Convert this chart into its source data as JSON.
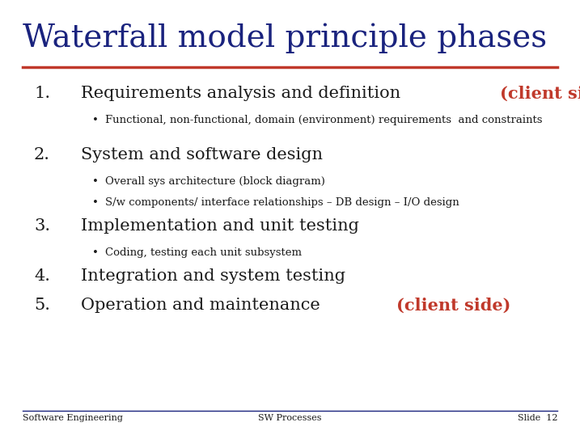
{
  "title": "Waterfall model principle phases",
  "title_color": "#1a237e",
  "title_fontsize": 28,
  "title_font": "serif",
  "separator_color": "#c0392b",
  "background_color": "#ffffff",
  "items": [
    {
      "number": "1.",
      "text_normal": "Requirements analysis and definition ",
      "text_red": "(client side)",
      "text_color": "#1a1a1a",
      "text_red_color": "#c0392b",
      "main_fontsize": 15,
      "sub_items": [
        "Functional, non-functional, domain (environment) requirements  and constraints"
      ],
      "sub_fontsize": 9.5
    },
    {
      "number": "2.",
      "text_normal": "System and software design",
      "text_red": "",
      "text_color": "#1a1a1a",
      "text_red_color": "#c0392b",
      "main_fontsize": 15,
      "sub_items": [
        "Overall sys architecture (block diagram)",
        "S/w components/ interface relationships – DB design – I/O design"
      ],
      "sub_fontsize": 9.5
    },
    {
      "number": "3.",
      "text_normal": "Implementation and unit testing",
      "text_red": "",
      "text_color": "#1a1a1a",
      "text_red_color": "#c0392b",
      "main_fontsize": 15,
      "sub_items": [
        "Coding, testing each unit subsystem"
      ],
      "sub_fontsize": 9.5
    },
    {
      "number": "4.",
      "text_normal": "Integration and system testing",
      "text_red": "",
      "text_color": "#1a1a1a",
      "text_red_color": "#c0392b",
      "main_fontsize": 15,
      "sub_items": [],
      "sub_fontsize": 9.5
    },
    {
      "number": "5.",
      "text_normal": "Operation and maintenance ",
      "text_red": "(client side)",
      "text_color": "#1a1a1a",
      "text_red_color": "#c0392b",
      "main_fontsize": 15,
      "sub_items": [],
      "sub_fontsize": 9.5
    }
  ],
  "footer_left": "Software Engineering",
  "footer_center": "SW Processes",
  "footer_right": "Slide  12",
  "footer_color": "#1a1a1a",
  "footer_fontsize": 8,
  "footer_line_color": "#1a237e"
}
